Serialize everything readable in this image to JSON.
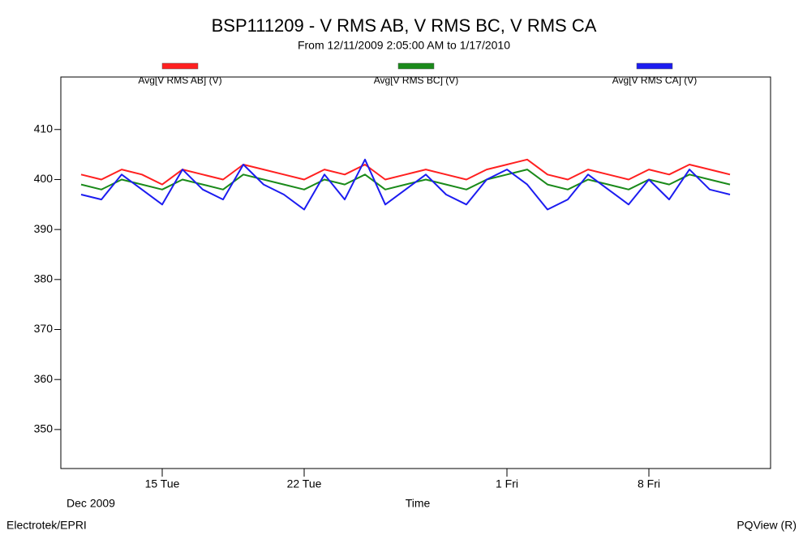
{
  "chart_data": {
    "type": "line",
    "title": "BSP111209 - V RMS AB, V RMS BC, V RMS CA",
    "subtitle": "From 12/11/2009 2:05:00 AM to 1/17/2010",
    "x_label": "Time",
    "x_period_label": "Dec 2009",
    "footer_left": "Electrotek/EPRI",
    "footer_right": "PQView (R)",
    "x": [
      "2009-12-11",
      "2009-12-12",
      "2009-12-13",
      "2009-12-14",
      "2009-12-15",
      "2009-12-16",
      "2009-12-17",
      "2009-12-18",
      "2009-12-19",
      "2009-12-20",
      "2009-12-21",
      "2009-12-22",
      "2009-12-23",
      "2009-12-24",
      "2009-12-25",
      "2009-12-26",
      "2009-12-27",
      "2009-12-28",
      "2009-12-29",
      "2009-12-30",
      "2009-12-31",
      "2010-01-01",
      "2010-01-02",
      "2010-01-03",
      "2010-01-04",
      "2010-01-05",
      "2010-01-06",
      "2010-01-07",
      "2010-01-08",
      "2010-01-09",
      "2010-01-10",
      "2010-01-11",
      "2010-01-12"
    ],
    "series": [
      {
        "name": "Avg[V RMS AB] (V)",
        "color": "#ff2020",
        "values": [
          401,
          400,
          402,
          401,
          399,
          402,
          401,
          400,
          403,
          402,
          401,
          400,
          402,
          401,
          403,
          400,
          401,
          402,
          401,
          400,
          402,
          403,
          404,
          401,
          400,
          402,
          401,
          400,
          402,
          401,
          403,
          402,
          401
        ]
      },
      {
        "name": "Avg[V RMS BC] (V)",
        "color": "#1a8a1a",
        "values": [
          399,
          398,
          400,
          399,
          398,
          400,
          399,
          398,
          401,
          400,
          399,
          398,
          400,
          399,
          401,
          398,
          399,
          400,
          399,
          398,
          400,
          401,
          402,
          399,
          398,
          400,
          399,
          398,
          400,
          399,
          401,
          400,
          399
        ]
      },
      {
        "name": "Avg[V RMS CA] (V)",
        "color": "#1c1cf0",
        "values": [
          397,
          396,
          401,
          398,
          395,
          402,
          398,
          396,
          403,
          399,
          397,
          394,
          401,
          396,
          404,
          395,
          398,
          401,
          397,
          395,
          400,
          402,
          399,
          394,
          396,
          401,
          398,
          395,
          400,
          396,
          402,
          398,
          397
        ]
      }
    ],
    "xlim": [
      "2009-12-10",
      "2010-01-14"
    ],
    "xticks": [
      {
        "value": "2009-12-15",
        "label": "15 Tue"
      },
      {
        "value": "2009-12-22",
        "label": "22 Tue"
      },
      {
        "value": "2010-01-01",
        "label": "1 Fri"
      },
      {
        "value": "2010-01-08",
        "label": "8 Fri"
      }
    ],
    "ylim": [
      342.2,
      420.5
    ],
    "yticks": [
      350,
      360,
      370,
      380,
      390,
      400,
      410
    ],
    "grid": false
  }
}
